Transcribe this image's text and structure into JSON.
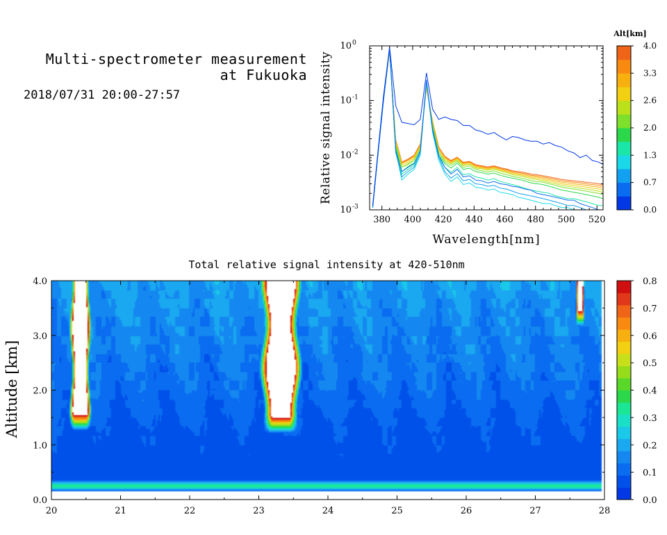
{
  "header": {
    "title_line1": "Multi-spectrometer measurement",
    "title_line2": "at Fukuoka",
    "datetime": "2018/07/31 20:00-27:57"
  },
  "chart_data": [
    {
      "type": "line",
      "title": "",
      "xlabel": "Wavelength[nm]",
      "ylabel": "Relative signal intensity",
      "xlim": [
        372,
        524
      ],
      "ylim": [
        0.001,
        1
      ],
      "yscale": "log",
      "x_ticks": [
        "380",
        "400",
        "420",
        "440",
        "460",
        "480",
        "500",
        "520"
      ],
      "y_tick_labels": [
        {
          "base": "10",
          "exp": "0"
        },
        {
          "base": "10",
          "exp": "-1"
        },
        {
          "base": "10",
          "exp": "-2"
        },
        {
          "base": "10",
          "exp": "-3"
        }
      ],
      "colorbar": {
        "label": "Alt[km]",
        "range": [
          0,
          4
        ],
        "tick_labels": [
          "4.0",
          "3.3",
          "2.6",
          "2.0",
          "1.3",
          "0.7",
          "0.0"
        ],
        "colors": [
          "#0038e6",
          "#0a6cf0",
          "#12a0f0",
          "#1ad8e8",
          "#1ae6a8",
          "#2ad84a",
          "#7ee02a",
          "#bce01a",
          "#f0d010",
          "#f8b010",
          "#f88a10",
          "#f06418"
        ]
      },
      "x": [
        374,
        377,
        381,
        385,
        389,
        393,
        397,
        401,
        405,
        409,
        413,
        417,
        421,
        425,
        429,
        433,
        437,
        441,
        445,
        449,
        453,
        457,
        461,
        465,
        469,
        473,
        477,
        481,
        485,
        489,
        493,
        497,
        501,
        505,
        509,
        513,
        517,
        521,
        524
      ],
      "series": [
        {
          "altitude": 0.0,
          "color": "#0038e6",
          "values": [
            0.0012,
            0.009,
            0.12,
            0.95,
            0.08,
            0.04,
            0.038,
            0.036,
            0.045,
            0.32,
            0.07,
            0.045,
            0.05,
            0.045,
            0.043,
            0.035,
            0.035,
            0.029,
            0.027,
            0.024,
            0.026,
            0.022,
            0.019,
            0.022,
            0.021,
            0.019,
            0.018,
            0.018,
            0.016,
            0.017,
            0.015,
            0.014,
            0.012,
            0.011,
            0.009,
            0.01,
            0.008,
            0.0075,
            0.0068
          ]
        },
        {
          "altitude": 0.3,
          "color": "#0a6cf0",
          "values": [
            0.0011,
            0.008,
            0.1,
            0.9,
            0.012,
            0.005,
            0.006,
            0.007,
            0.012,
            0.24,
            0.03,
            0.01,
            0.006,
            0.0045,
            0.0055,
            0.004,
            0.0042,
            0.0035,
            0.0034,
            0.0031,
            0.0033,
            0.003,
            0.0029,
            0.0027,
            0.0026,
            0.0024,
            0.0023,
            0.002,
            0.0019,
            0.0018,
            0.0017,
            0.0016,
            0.0015,
            0.0015,
            0.0013,
            0.0012,
            0.0011,
            0.001,
            0.001
          ]
        },
        {
          "altitude": 0.7,
          "color": "#12a0f0",
          "values": [
            0.0011,
            0.008,
            0.1,
            0.9,
            0.011,
            0.004,
            0.005,
            0.006,
            0.011,
            0.23,
            0.028,
            0.009,
            0.005,
            0.0038,
            0.0046,
            0.0034,
            0.0036,
            0.003,
            0.0029,
            0.0027,
            0.0028,
            0.0025,
            0.0024,
            0.0022,
            0.002,
            0.0019,
            0.0018,
            0.0017,
            0.0016,
            0.0015,
            0.0014,
            0.0013,
            0.0012,
            0.0012,
            0.0011,
            0.001,
            0.001,
            0.001,
            0.001
          ]
        },
        {
          "altitude": 1.0,
          "color": "#1ad8e8",
          "values": [
            0.0011,
            0.008,
            0.1,
            0.9,
            0.012,
            0.0035,
            0.0045,
            0.0055,
            0.01,
            0.22,
            0.026,
            0.008,
            0.0045,
            0.0033,
            0.004,
            0.0029,
            0.0031,
            0.0026,
            0.0025,
            0.0023,
            0.0024,
            0.0021,
            0.002,
            0.0019,
            0.0017,
            0.0016,
            0.0015,
            0.0014,
            0.0013,
            0.0013,
            0.0012,
            0.0011,
            0.0011,
            0.001,
            0.001,
            0.001,
            0.001,
            0.001,
            0.001
          ]
        },
        {
          "altitude": 1.3,
          "color": "#1ae6a8",
          "values": [
            0.0011,
            0.008,
            0.1,
            0.9,
            0.013,
            0.0045,
            0.0055,
            0.0065,
            0.011,
            0.22,
            0.03,
            0.009,
            0.006,
            0.0048,
            0.006,
            0.0044,
            0.0046,
            0.004,
            0.0038,
            0.0035,
            0.0037,
            0.0033,
            0.0031,
            0.0029,
            0.0027,
            0.0025,
            0.0023,
            0.0022,
            0.0021,
            0.002,
            0.0018,
            0.0017,
            0.0016,
            0.0016,
            0.0015,
            0.0014,
            0.0013,
            0.0012,
            0.0012
          ]
        },
        {
          "altitude": 1.7,
          "color": "#2ad84a",
          "values": [
            0.0011,
            0.008,
            0.1,
            0.9,
            0.014,
            0.005,
            0.0062,
            0.0072,
            0.012,
            0.21,
            0.032,
            0.01,
            0.007,
            0.0058,
            0.0072,
            0.0055,
            0.0058,
            0.005,
            0.0048,
            0.0045,
            0.0047,
            0.0043,
            0.004,
            0.0038,
            0.0036,
            0.0034,
            0.0031,
            0.003,
            0.0029,
            0.0027,
            0.0025,
            0.0023,
            0.0022,
            0.0021,
            0.002,
            0.0019,
            0.0018,
            0.0017,
            0.0016
          ]
        },
        {
          "altitude": 2.0,
          "color": "#7ee02a",
          "values": [
            0.0011,
            0.008,
            0.1,
            0.88,
            0.015,
            0.006,
            0.0068,
            0.008,
            0.013,
            0.2,
            0.035,
            0.011,
            0.0075,
            0.0065,
            0.0078,
            0.006,
            0.0064,
            0.0055,
            0.0052,
            0.0049,
            0.0052,
            0.0047,
            0.0044,
            0.0041,
            0.0039,
            0.0037,
            0.0034,
            0.0033,
            0.0032,
            0.003,
            0.0028,
            0.0026,
            0.0025,
            0.0024,
            0.0023,
            0.0022,
            0.0021,
            0.002,
            0.0019
          ]
        },
        {
          "altitude": 2.3,
          "color": "#bce01a",
          "values": [
            0.0011,
            0.008,
            0.1,
            0.86,
            0.016,
            0.006,
            0.007,
            0.0085,
            0.014,
            0.19,
            0.037,
            0.012,
            0.008,
            0.007,
            0.0082,
            0.0064,
            0.0068,
            0.0058,
            0.0056,
            0.0053,
            0.0056,
            0.0051,
            0.0048,
            0.0044,
            0.0042,
            0.004,
            0.0037,
            0.0036,
            0.0034,
            0.0032,
            0.003,
            0.0028,
            0.0027,
            0.0026,
            0.0025,
            0.0024,
            0.0023,
            0.0022,
            0.0021
          ]
        },
        {
          "altitude": 2.6,
          "color": "#f0d010",
          "values": [
            0.0011,
            0.008,
            0.1,
            0.85,
            0.017,
            0.0065,
            0.0075,
            0.009,
            0.014,
            0.18,
            0.038,
            0.012,
            0.0085,
            0.0072,
            0.0085,
            0.0067,
            0.007,
            0.006,
            0.0058,
            0.0055,
            0.0058,
            0.0053,
            0.005,
            0.0046,
            0.0044,
            0.0042,
            0.0039,
            0.0038,
            0.0036,
            0.0034,
            0.0032,
            0.003,
            0.0029,
            0.0028,
            0.0027,
            0.0026,
            0.0025,
            0.0024,
            0.0023
          ]
        },
        {
          "altitude": 3.0,
          "color": "#f8b010",
          "values": [
            0.0011,
            0.008,
            0.1,
            0.84,
            0.018,
            0.007,
            0.008,
            0.0095,
            0.015,
            0.18,
            0.04,
            0.013,
            0.009,
            0.0075,
            0.0088,
            0.007,
            0.0073,
            0.0063,
            0.006,
            0.0057,
            0.006,
            0.0055,
            0.0052,
            0.0048,
            0.0046,
            0.0044,
            0.0041,
            0.004,
            0.0038,
            0.0036,
            0.0034,
            0.0032,
            0.0031,
            0.003,
            0.0029,
            0.0028,
            0.0027,
            0.0026,
            0.0025
          ]
        },
        {
          "altitude": 3.3,
          "color": "#f88a10",
          "values": [
            0.0011,
            0.008,
            0.1,
            0.83,
            0.018,
            0.0072,
            0.0082,
            0.0098,
            0.015,
            0.17,
            0.041,
            0.013,
            0.0092,
            0.0078,
            0.009,
            0.0072,
            0.0075,
            0.0065,
            0.0062,
            0.0059,
            0.0062,
            0.0057,
            0.0054,
            0.005,
            0.0048,
            0.0046,
            0.0043,
            0.0042,
            0.004,
            0.0038,
            0.0036,
            0.0034,
            0.0033,
            0.0032,
            0.0031,
            0.003,
            0.0029,
            0.0028,
            0.0027
          ]
        },
        {
          "altitude": 3.7,
          "color": "#f06418",
          "values": [
            0.0011,
            0.008,
            0.1,
            0.82,
            0.019,
            0.0075,
            0.0085,
            0.01,
            0.016,
            0.17,
            0.042,
            0.014,
            0.0095,
            0.008,
            0.0092,
            0.0074,
            0.0077,
            0.0067,
            0.0064,
            0.0061,
            0.0064,
            0.0059,
            0.0056,
            0.0052,
            0.005,
            0.0048,
            0.0045,
            0.0044,
            0.0042,
            0.004,
            0.0038,
            0.0036,
            0.0035,
            0.0034,
            0.0033,
            0.0032,
            0.0031,
            0.003,
            0.0029
          ]
        }
      ]
    },
    {
      "type": "heatmap",
      "title": "Total relative signal intensity at 420-510nm",
      "xlabel": "",
      "ylabel": "Altitude [km]",
      "xlim": [
        20,
        28
      ],
      "ylim": [
        0,
        4
      ],
      "data_xlim": [
        20,
        27.95
      ],
      "data_ylim": [
        0.15,
        4.0
      ],
      "x_ticks": [
        "20",
        "21",
        "22",
        "23",
        "24",
        "25",
        "26",
        "27",
        "28"
      ],
      "y_ticks": [
        "0.0",
        "1.0",
        "2.0",
        "3.0",
        "4.0"
      ],
      "colorbar": {
        "range": [
          0,
          0.8
        ],
        "tick_labels": [
          "0.8",
          "0.7",
          "0.6",
          "0.5",
          "0.4",
          "0.3",
          "0.2",
          "0.1",
          "0.0"
        ],
        "colors": [
          "#0038e6",
          "#0050ea",
          "#0a6cf0",
          "#1488f0",
          "#1aa8f0",
          "#1ac8e8",
          "#1ae0c8",
          "#1ae696",
          "#2ad84a",
          "#5ad82a",
          "#96dc1a",
          "#c8e01a",
          "#f0d010",
          "#f8b010",
          "#f88a10",
          "#f06418",
          "#e03818",
          "#d01010"
        ]
      },
      "features": [
        {
          "kind": "cloud",
          "x_center": 20.42,
          "x_width": 0.25,
          "alt_base": 1.6,
          "alt_top": 4.0,
          "value": 0.9
        },
        {
          "kind": "cloud",
          "x_center": 23.32,
          "x_width": 0.48,
          "alt_base": 1.55,
          "alt_top": 4.0,
          "value": 0.9
        },
        {
          "kind": "cloud",
          "x_center": 27.65,
          "x_width": 0.12,
          "alt_base": 3.5,
          "alt_top": 4.0,
          "value": 0.9
        },
        {
          "kind": "surface_layer",
          "alt_from": 0.15,
          "alt_to": 0.35,
          "value": 0.3
        },
        {
          "kind": "background",
          "low_alt_value": 0.06,
          "high_alt_value": 0.16
        }
      ]
    }
  ]
}
